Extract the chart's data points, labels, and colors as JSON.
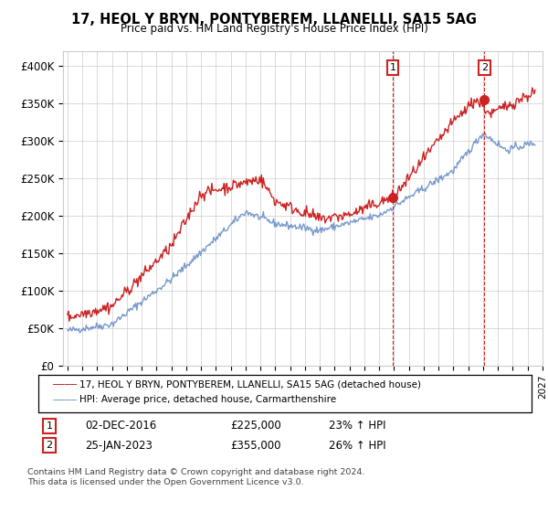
{
  "title": "17, HEOL Y BRYN, PONTYBEREM, LLANELLI, SA15 5AG",
  "subtitle": "Price paid vs. HM Land Registry's House Price Index (HPI)",
  "ylabel_ticks": [
    "£0",
    "£50K",
    "£100K",
    "£150K",
    "£200K",
    "£250K",
    "£300K",
    "£350K",
    "£400K"
  ],
  "ytick_values": [
    0,
    50000,
    100000,
    150000,
    200000,
    250000,
    300000,
    350000,
    400000
  ],
  "ylim": [
    0,
    420000
  ],
  "hpi_color": "#7799cc",
  "price_color": "#cc2222",
  "marker1_date": 2016.92,
  "marker1_price": 225000,
  "marker1_label": "02-DEC-2016",
  "marker1_pct": "23% ↑ HPI",
  "marker2_date": 2023.08,
  "marker2_price": 355000,
  "marker2_label": "25-JAN-2023",
  "marker2_pct": "26% ↑ HPI",
  "legend_line1": "17, HEOL Y BRYN, PONTYBEREM, LLANELLI, SA15 5AG (detached house)",
  "legend_line2": "HPI: Average price, detached house, Carmarthenshire",
  "footnote": "Contains HM Land Registry data © Crown copyright and database right 2024.\nThis data is licensed under the Open Government Licence v3.0.",
  "background_color": "#ffffff",
  "grid_color": "#cccccc",
  "xtick_start": 1995,
  "xtick_end": 2027
}
